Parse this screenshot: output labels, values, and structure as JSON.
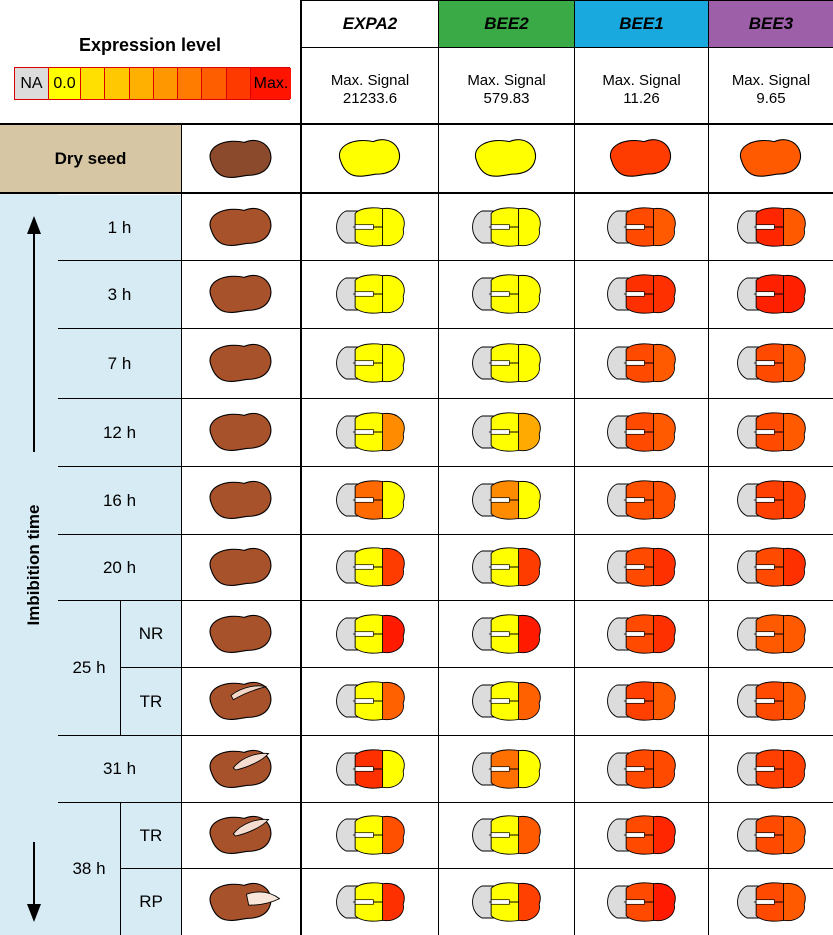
{
  "legend": {
    "title": "Expression level",
    "na_label": "NA",
    "min_label": "0.0",
    "max_label": "Max.",
    "na_color": "#dcdcdc",
    "scale_colors": [
      "#ffff00",
      "#ffe000",
      "#ffc800",
      "#ffb000",
      "#ff9800",
      "#ff7c00",
      "#ff5e00",
      "#ff3a00",
      "#ff1400"
    ]
  },
  "genes": [
    {
      "name": "EXPA2",
      "header_color": "#ffffff",
      "signal_label": "Max. Signal",
      "max_signal": "21233.6"
    },
    {
      "name": "BEE2",
      "header_color": "#3aaa47",
      "signal_label": "Max. Signal",
      "max_signal": "579.83"
    },
    {
      "name": "BEE1",
      "header_color": "#1aa9de",
      "signal_label": "Max. Signal",
      "max_signal": "11.26"
    },
    {
      "name": "BEE3",
      "header_color": "#9d5fa8",
      "signal_label": "Max. Signal",
      "max_signal": "9.65"
    }
  ],
  "dry_seed": {
    "label": "Dry seed",
    "colors": [
      "#ffff00",
      "#ffff00",
      "#ff3c00",
      "#ff5a00"
    ]
  },
  "axis_label": "Imbibition time",
  "rows": [
    {
      "time": "1 h",
      "seed": "plain",
      "colors": [
        [
          "#ffff00",
          "#ffff00"
        ],
        [
          "#ffff00",
          "#ffff00"
        ],
        [
          "#ff4a00",
          "#ff5a00"
        ],
        [
          "#ff2600",
          "#ff5a00"
        ]
      ]
    },
    {
      "time": "3 h",
      "seed": "plain",
      "colors": [
        [
          "#ffff00",
          "#ffff00"
        ],
        [
          "#ffff00",
          "#ffff00"
        ],
        [
          "#ff3000",
          "#ff3000"
        ],
        [
          "#ff2000",
          "#ff2000"
        ]
      ]
    },
    {
      "time": "7 h",
      "seed": "plain",
      "colors": [
        [
          "#ffff00",
          "#ffff00"
        ],
        [
          "#ffff00",
          "#ffff00"
        ],
        [
          "#ff4a00",
          "#ff5a00"
        ],
        [
          "#ff4a00",
          "#ff5a00"
        ]
      ]
    },
    {
      "time": "12 h",
      "seed": "plain",
      "colors": [
        [
          "#ffff00",
          "#ff8c00"
        ],
        [
          "#ffff00",
          "#ffaa00"
        ],
        [
          "#ff4a00",
          "#ff5a00"
        ],
        [
          "#ff4a00",
          "#ff5a00"
        ]
      ]
    },
    {
      "time": "16 h",
      "seed": "plain",
      "colors": [
        [
          "#ff6a00",
          "#ffff00"
        ],
        [
          "#ff8c00",
          "#ffff00"
        ],
        [
          "#ff5000",
          "#ff5000"
        ],
        [
          "#ff4000",
          "#ff4000"
        ]
      ]
    },
    {
      "time": "20 h",
      "seed": "plain",
      "colors": [
        [
          "#ffff00",
          "#ff3c00"
        ],
        [
          "#ffff00",
          "#ff3c00"
        ],
        [
          "#ff4a00",
          "#ff3000"
        ],
        [
          "#ff4a00",
          "#ff3000"
        ]
      ]
    },
    {
      "time": "NR",
      "group": "25 h",
      "seed": "plain",
      "colors": [
        [
          "#ffff00",
          "#ff1a00"
        ],
        [
          "#ffff00",
          "#ff1a00"
        ],
        [
          "#ff4a00",
          "#ff3000"
        ],
        [
          "#ff5a00",
          "#ff5a00"
        ]
      ]
    },
    {
      "time": "TR",
      "group": "25 h",
      "seed": "cracked",
      "colors": [
        [
          "#ffff00",
          "#ff6000"
        ],
        [
          "#ffff00",
          "#ff6000"
        ],
        [
          "#ff4000",
          "#ff5a00"
        ],
        [
          "#ff4a00",
          "#ff5a00"
        ]
      ]
    },
    {
      "time": "31 h",
      "seed": "radicle",
      "colors": [
        [
          "#ff3000",
          "#ffff00"
        ],
        [
          "#ff7000",
          "#ffff00"
        ],
        [
          "#ff4a00",
          "#ff4a00"
        ],
        [
          "#ff4000",
          "#ff4000"
        ]
      ]
    },
    {
      "time": "TR",
      "group": "38 h",
      "seed": "radicle",
      "colors": [
        [
          "#ffff00",
          "#ff5000"
        ],
        [
          "#ffff00",
          "#ff5a00"
        ],
        [
          "#ff4a00",
          "#ff2600"
        ],
        [
          "#ff4a00",
          "#ff5a00"
        ]
      ]
    },
    {
      "time": "RP",
      "group": "38 h",
      "seed": "emerged",
      "colors": [
        [
          "#ffff00",
          "#ff3000"
        ],
        [
          "#ffff00",
          "#ff4000"
        ],
        [
          "#ff4a00",
          "#ff1a00"
        ],
        [
          "#ff4a00",
          "#ff5a00"
        ]
      ]
    }
  ],
  "colors": {
    "dry_seed_bg": "#d7c6a4",
    "time_bg": "#d7ebf5",
    "seed_dark": "#8b4a2b",
    "seed_brown": "#a8522c",
    "na_gray": "#dcdcdc"
  }
}
